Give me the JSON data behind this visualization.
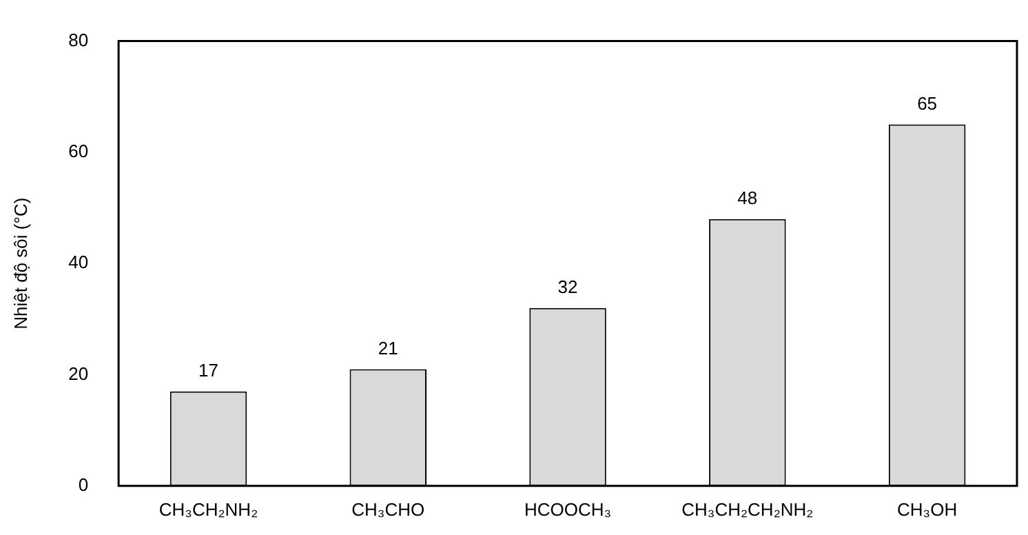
{
  "chart_data": {
    "type": "bar",
    "ylabel": "Nhiệt độ sôi (°C)",
    "categories": [
      "CH₃CH₂NH₂",
      "CH₃CHO",
      "HCOOCH₃",
      "CH₃CH₂CH₂NH₂",
      "CH₃OH"
    ],
    "values": [
      17,
      21,
      32,
      48,
      65
    ],
    "color": "#d9d9d9",
    "ylim": [
      0,
      80
    ],
    "yticks": [
      0,
      20,
      40,
      60,
      80
    ],
    "grid": false,
    "legend": false,
    "data_labels": true
  }
}
